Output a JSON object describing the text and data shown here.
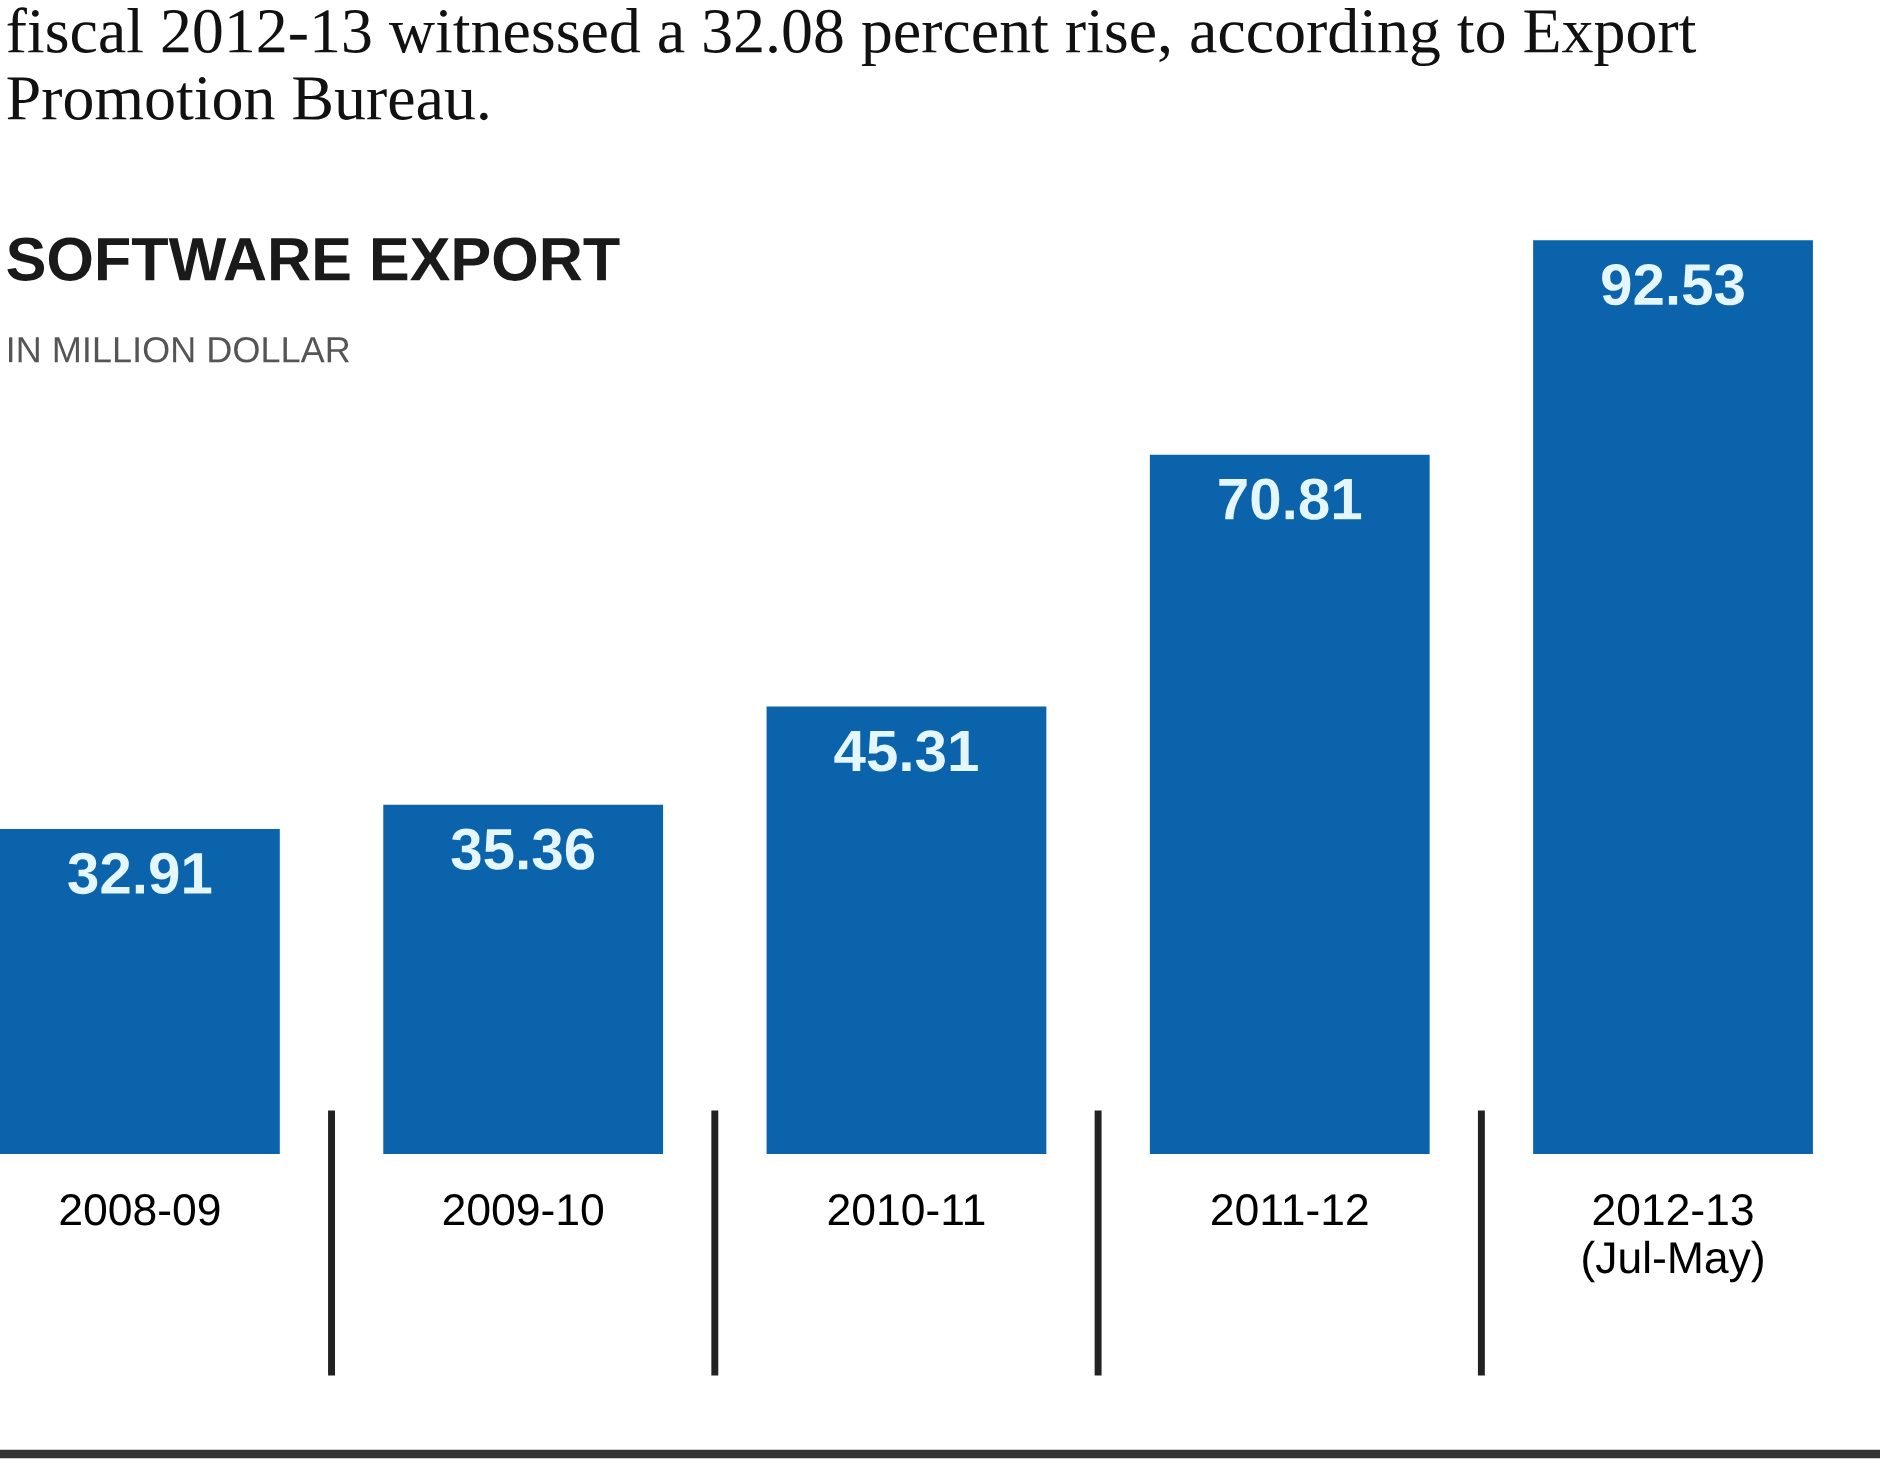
{
  "chart_data": {
    "type": "bar",
    "title": "SOFTWARE EXPORT",
    "subtitle": "IN MILLION DOLLAR",
    "annotations": [
      "fiscal 2012-13 witnessed a 32.08 percent rise, according to Export Promotion Bureau."
    ],
    "categories": [
      "2008-09",
      "2009-10",
      "2010-11",
      "2011-12",
      "2012-13\n(Jul-May)"
    ],
    "values": [
      32.91,
      35.36,
      45.31,
      70.81,
      92.53
    ],
    "color": "#0a63ab",
    "data_labels": true,
    "grid": false,
    "legend": false
  }
}
